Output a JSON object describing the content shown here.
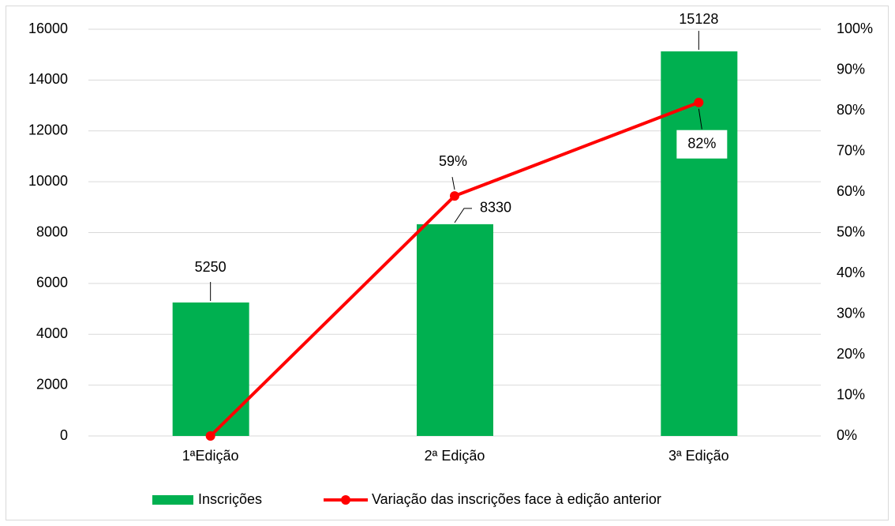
{
  "chart_data": {
    "type": "bar_line",
    "categories": [
      "1ªEdição",
      "2ª Edição",
      "3ª Edição"
    ],
    "series": [
      {
        "name": "Inscrições",
        "type": "bar",
        "color": "#00b050",
        "values": [
          5250,
          8330,
          15128
        ]
      },
      {
        "name": "Variação das inscrições face à edição anterior",
        "type": "line",
        "axis": "y2",
        "color": "#ff0000",
        "values": [
          0,
          59,
          82
        ],
        "value_labels": [
          null,
          "59%",
          "82%"
        ]
      }
    ],
    "ylim": [
      0,
      16000
    ],
    "yticks": [
      0,
      2000,
      4000,
      6000,
      8000,
      10000,
      12000,
      14000,
      16000
    ],
    "y2lim": [
      0,
      100
    ],
    "y2ticks": [
      {
        "value": 0,
        "label": "0%"
      },
      {
        "value": 10,
        "label": "10%"
      },
      {
        "value": 20,
        "label": "20%"
      },
      {
        "value": 30,
        "label": "30%"
      },
      {
        "value": 40,
        "label": "40%"
      },
      {
        "value": 50,
        "label": "50%"
      },
      {
        "value": 60,
        "label": "60%"
      },
      {
        "value": 70,
        "label": "70%"
      },
      {
        "value": 80,
        "label": "80%"
      },
      {
        "value": 90,
        "label": "90%"
      },
      {
        "value": 100,
        "label": "100%"
      }
    ],
    "grid": true,
    "legend": "bottom"
  }
}
